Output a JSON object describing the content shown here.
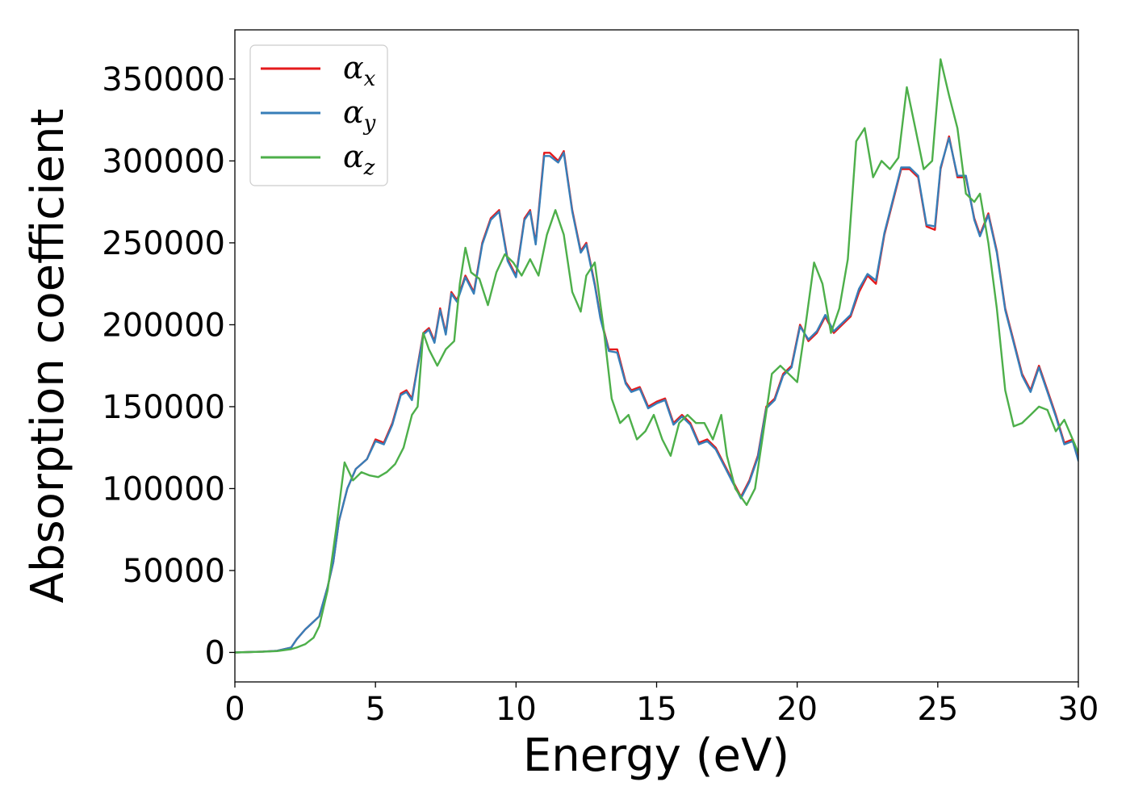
{
  "chart_data": {
    "type": "line",
    "xlabel": "Energy (eV)",
    "ylabel": "Absorption coefficient",
    "xlim": [
      0,
      30
    ],
    "ylim": [
      -18000,
      380000
    ],
    "xticks": [
      0,
      5,
      10,
      15,
      20,
      25,
      30
    ],
    "yticks": [
      0,
      50000,
      100000,
      150000,
      200000,
      250000,
      300000,
      350000
    ],
    "grid": false,
    "legend_position": "top-left",
    "series": [
      {
        "name": "α",
        "subscript": "x",
        "color": "#e41a1c",
        "x": [
          0,
          1,
          1.5,
          2,
          2.2,
          2.5,
          3,
          3.3,
          3.5,
          3.7,
          4,
          4.3,
          4.5,
          4.7,
          5,
          5.3,
          5.6,
          5.9,
          6.1,
          6.3,
          6.5,
          6.7,
          6.9,
          7.1,
          7.3,
          7.5,
          7.7,
          7.9,
          8.2,
          8.5,
          8.8,
          9.1,
          9.4,
          9.7,
          10,
          10.3,
          10.5,
          10.7,
          11,
          11.2,
          11.5,
          11.7,
          12,
          12.3,
          12.5,
          12.8,
          13,
          13.3,
          13.6,
          13.9,
          14.1,
          14.4,
          14.7,
          15,
          15.3,
          15.6,
          15.9,
          16.2,
          16.5,
          16.8,
          17.1,
          17.4,
          17.7,
          18,
          18.3,
          18.6,
          18.9,
          19.2,
          19.5,
          19.8,
          20.1,
          20.4,
          20.7,
          21,
          21.3,
          21.6,
          21.9,
          22.2,
          22.5,
          22.8,
          23.1,
          23.4,
          23.7,
          24,
          24.3,
          24.6,
          24.9,
          25.1,
          25.4,
          25.7,
          26,
          26.3,
          26.5,
          26.8,
          27.1,
          27.4,
          27.7,
          28,
          28.3,
          28.6,
          28.9,
          29.2,
          29.5,
          29.8,
          30
        ],
        "y": [
          0,
          500,
          1000,
          3000,
          8000,
          14000,
          22000,
          40000,
          55000,
          80000,
          100000,
          112000,
          115000,
          118000,
          130000,
          128000,
          140000,
          158000,
          160000,
          155000,
          175000,
          195000,
          198000,
          190000,
          210000,
          195000,
          220000,
          215000,
          230000,
          220000,
          250000,
          265000,
          270000,
          240000,
          230000,
          265000,
          270000,
          250000,
          305000,
          305000,
          300000,
          306000,
          270000,
          245000,
          250000,
          225000,
          205000,
          185000,
          185000,
          165000,
          160000,
          162000,
          150000,
          153000,
          155000,
          140000,
          145000,
          140000,
          128000,
          130000,
          125000,
          115000,
          105000,
          95000,
          105000,
          120000,
          150000,
          155000,
          170000,
          175000,
          200000,
          190000,
          195000,
          205000,
          195000,
          200000,
          205000,
          220000,
          230000,
          225000,
          255000,
          275000,
          295000,
          295000,
          290000,
          260000,
          258000,
          295000,
          315000,
          290000,
          290000,
          265000,
          255000,
          268000,
          245000,
          210000,
          190000,
          170000,
          160000,
          175000,
          160000,
          145000,
          128000,
          130000,
          118000
        ]
      },
      {
        "name": "α",
        "subscript": "y",
        "color": "#377eb8",
        "x": [
          0,
          1,
          1.5,
          2,
          2.2,
          2.5,
          3,
          3.3,
          3.5,
          3.7,
          4,
          4.3,
          4.5,
          4.7,
          5,
          5.3,
          5.6,
          5.9,
          6.1,
          6.3,
          6.5,
          6.7,
          6.9,
          7.1,
          7.3,
          7.5,
          7.7,
          7.9,
          8.2,
          8.5,
          8.8,
          9.1,
          9.4,
          9.7,
          10,
          10.3,
          10.5,
          10.7,
          11,
          11.2,
          11.5,
          11.7,
          12,
          12.3,
          12.5,
          12.8,
          13,
          13.3,
          13.6,
          13.9,
          14.1,
          14.4,
          14.7,
          15,
          15.3,
          15.6,
          15.9,
          16.2,
          16.5,
          16.8,
          17.1,
          17.4,
          17.7,
          18,
          18.3,
          18.6,
          18.9,
          19.2,
          19.5,
          19.8,
          20.1,
          20.4,
          20.7,
          21,
          21.3,
          21.6,
          21.9,
          22.2,
          22.5,
          22.8,
          23.1,
          23.4,
          23.7,
          24,
          24.3,
          24.6,
          24.9,
          25.1,
          25.4,
          25.7,
          26,
          26.3,
          26.5,
          26.8,
          27.1,
          27.4,
          27.7,
          28,
          28.3,
          28.6,
          28.9,
          29.2,
          29.5,
          29.8,
          30
        ],
        "y": [
          0,
          500,
          1000,
          3000,
          8000,
          14000,
          22000,
          40000,
          55000,
          80000,
          100000,
          112000,
          115000,
          118000,
          129000,
          127000,
          139000,
          157000,
          159000,
          154000,
          174000,
          194000,
          197000,
          189000,
          209000,
          194000,
          219000,
          214000,
          229000,
          219000,
          249000,
          264000,
          269000,
          239000,
          229000,
          264000,
          269000,
          249000,
          303000,
          303000,
          299000,
          305000,
          269000,
          244000,
          249000,
          224000,
          204000,
          184000,
          183000,
          164000,
          159000,
          161000,
          149000,
          152000,
          154000,
          139000,
          144000,
          139000,
          127000,
          129000,
          124000,
          114000,
          104000,
          94000,
          104000,
          119000,
          149000,
          154000,
          169000,
          174000,
          199000,
          191000,
          196000,
          206000,
          196000,
          201000,
          206000,
          222000,
          231000,
          227000,
          256000,
          276000,
          296000,
          296000,
          291000,
          261000,
          260000,
          296000,
          314000,
          291000,
          291000,
          264000,
          254000,
          267000,
          244000,
          209000,
          189000,
          169000,
          159000,
          174000,
          159000,
          144000,
          127000,
          129000,
          117000
        ]
      },
      {
        "name": "α",
        "subscript": "z",
        "color": "#4daf4a",
        "x": [
          0,
          1,
          1.5,
          2,
          2.2,
          2.5,
          2.8,
          3,
          3.3,
          3.6,
          3.9,
          4.2,
          4.5,
          4.8,
          5.1,
          5.4,
          5.7,
          6,
          6.3,
          6.5,
          6.7,
          6.9,
          7.2,
          7.5,
          7.8,
          8,
          8.2,
          8.4,
          8.7,
          9,
          9.3,
          9.6,
          9.9,
          10.2,
          10.5,
          10.8,
          11.1,
          11.4,
          11.7,
          12,
          12.3,
          12.5,
          12.8,
          13.1,
          13.4,
          13.7,
          14,
          14.3,
          14.6,
          14.9,
          15.2,
          15.5,
          15.8,
          16.1,
          16.4,
          16.7,
          17,
          17.3,
          17.5,
          17.8,
          18.2,
          18.5,
          18.8,
          19.1,
          19.4,
          19.7,
          20,
          20.3,
          20.6,
          20.9,
          21.2,
          21.5,
          21.8,
          22.1,
          22.4,
          22.7,
          23,
          23.3,
          23.6,
          23.9,
          24.2,
          24.5,
          24.8,
          25.1,
          25.4,
          25.7,
          26,
          26.3,
          26.5,
          26.8,
          27.1,
          27.4,
          27.7,
          28,
          28.3,
          28.6,
          28.9,
          29.2,
          29.5,
          29.8,
          30
        ],
        "y": [
          0,
          400,
          800,
          2000,
          3000,
          5000,
          9000,
          16000,
          38000,
          75000,
          116000,
          105000,
          110000,
          108000,
          107000,
          110000,
          115000,
          125000,
          145000,
          150000,
          195000,
          185000,
          175000,
          185000,
          190000,
          225000,
          247000,
          232000,
          228000,
          212000,
          232000,
          243000,
          238000,
          230000,
          240000,
          230000,
          255000,
          270000,
          255000,
          220000,
          208000,
          230000,
          238000,
          200000,
          155000,
          140000,
          145000,
          130000,
          135000,
          145000,
          130000,
          120000,
          140000,
          145000,
          140000,
          140000,
          130000,
          145000,
          120000,
          100000,
          90000,
          100000,
          135000,
          170000,
          175000,
          170000,
          165000,
          200000,
          238000,
          225000,
          195000,
          210000,
          240000,
          312000,
          320000,
          290000,
          300000,
          295000,
          302000,
          345000,
          320000,
          295000,
          300000,
          362000,
          340000,
          320000,
          280000,
          275000,
          280000,
          250000,
          210000,
          160000,
          138000,
          140000,
          145000,
          150000,
          148000,
          135000,
          142000,
          130000,
          122000
        ]
      }
    ]
  }
}
